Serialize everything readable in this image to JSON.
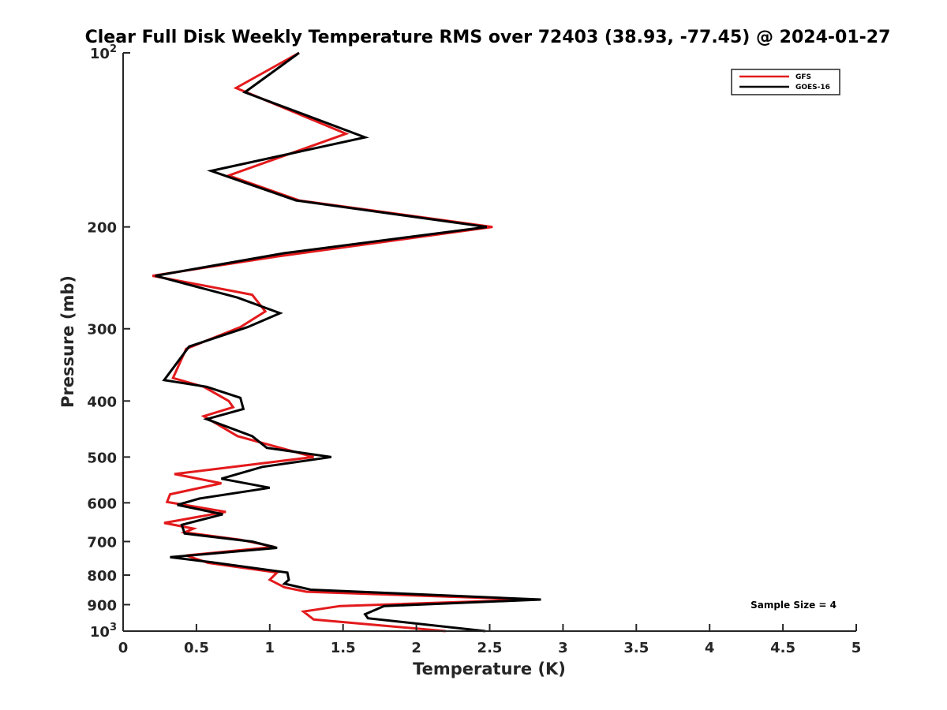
{
  "chart_data": {
    "type": "line",
    "title": "Clear Full Disk Weekly Temperature RMS over 72403 (38.93, -77.45) @ 2024-01-27",
    "xlabel": "Temperature (K)",
    "ylabel": "Pressure (mb)",
    "xlim": [
      0,
      5
    ],
    "ylim": [
      100,
      1000
    ],
    "yscale": "log",
    "y_reversed": true,
    "grid": false,
    "legend_position": "top-right",
    "x_ticks": [
      0,
      0.5,
      1,
      1.5,
      2,
      2.5,
      3,
      3.5,
      4,
      4.5,
      5
    ],
    "x_tick_labels": [
      "0",
      "0.5",
      "1",
      "1.5",
      "2",
      "2.5",
      "3",
      "3.5",
      "4",
      "4.5",
      "5"
    ],
    "y_ticks": [
      100,
      200,
      300,
      400,
      500,
      600,
      700,
      800,
      900,
      1000
    ],
    "y_tick_labels": [
      {
        "base": "10",
        "exp": "2"
      },
      {
        "base": "200",
        "exp": ""
      },
      {
        "base": "300",
        "exp": ""
      },
      {
        "base": "400",
        "exp": ""
      },
      {
        "base": "500",
        "exp": ""
      },
      {
        "base": "600",
        "exp": ""
      },
      {
        "base": "700",
        "exp": ""
      },
      {
        "base": "800",
        "exp": ""
      },
      {
        "base": "900",
        "exp": ""
      },
      {
        "base": "10",
        "exp": "3"
      }
    ],
    "annotation": "Sample Size = 4",
    "series": [
      {
        "name": "GFS",
        "color": "#e31a1c",
        "points": [
          [
            1.2,
            100
          ],
          [
            0.77,
            115
          ],
          [
            1.52,
            138
          ],
          [
            0.72,
            163
          ],
          [
            1.2,
            180
          ],
          [
            2.52,
            200
          ],
          [
            1.05,
            225
          ],
          [
            0.2,
            243
          ],
          [
            0.88,
            262
          ],
          [
            0.97,
            280
          ],
          [
            0.8,
            298
          ],
          [
            0.43,
            325
          ],
          [
            0.34,
            365
          ],
          [
            0.55,
            378
          ],
          [
            0.72,
            400
          ],
          [
            0.75,
            410
          ],
          [
            0.55,
            425
          ],
          [
            0.78,
            460
          ],
          [
            1.3,
            500
          ],
          [
            0.35,
            535
          ],
          [
            0.67,
            555
          ],
          [
            0.32,
            580
          ],
          [
            0.3,
            598
          ],
          [
            0.7,
            622
          ],
          [
            0.28,
            650
          ],
          [
            0.48,
            665
          ],
          [
            0.42,
            675
          ],
          [
            0.8,
            695
          ],
          [
            1.03,
            715
          ],
          [
            0.43,
            740
          ],
          [
            0.58,
            762
          ],
          [
            1.05,
            792
          ],
          [
            1.0,
            815
          ],
          [
            1.1,
            840
          ],
          [
            1.25,
            855
          ],
          [
            2.8,
            882
          ],
          [
            1.48,
            905
          ],
          [
            1.23,
            925
          ],
          [
            1.3,
            955
          ],
          [
            2.2,
            1000
          ]
        ]
      },
      {
        "name": "GOES-16",
        "color": "#000000",
        "points": [
          [
            1.2,
            100
          ],
          [
            0.83,
            117
          ],
          [
            1.65,
            140
          ],
          [
            0.6,
            160
          ],
          [
            1.18,
            180
          ],
          [
            2.48,
            200
          ],
          [
            1.1,
            222
          ],
          [
            0.22,
            243
          ],
          [
            0.78,
            265
          ],
          [
            1.07,
            282
          ],
          [
            0.85,
            298
          ],
          [
            0.45,
            322
          ],
          [
            0.28,
            368
          ],
          [
            0.57,
            378
          ],
          [
            0.8,
            395
          ],
          [
            0.82,
            413
          ],
          [
            0.57,
            430
          ],
          [
            0.88,
            460
          ],
          [
            0.98,
            482
          ],
          [
            1.42,
            500
          ],
          [
            0.95,
            520
          ],
          [
            0.67,
            545
          ],
          [
            1.0,
            565
          ],
          [
            0.52,
            590
          ],
          [
            0.37,
            605
          ],
          [
            0.68,
            628
          ],
          [
            0.4,
            655
          ],
          [
            0.42,
            678
          ],
          [
            0.88,
            700
          ],
          [
            1.05,
            718
          ],
          [
            0.32,
            745
          ],
          [
            0.6,
            760
          ],
          [
            1.12,
            792
          ],
          [
            1.13,
            815
          ],
          [
            1.1,
            828
          ],
          [
            1.28,
            848
          ],
          [
            2.85,
            882
          ],
          [
            1.78,
            905
          ],
          [
            1.65,
            935
          ],
          [
            1.67,
            950
          ],
          [
            2.47,
            1000
          ]
        ]
      }
    ]
  }
}
